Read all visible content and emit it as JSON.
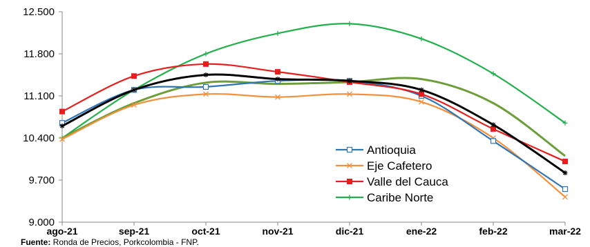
{
  "chart_data": {
    "type": "line",
    "title": "",
    "xlabel": "",
    "ylabel": "",
    "categories": [
      "ago-21",
      "sep-21",
      "oct-21",
      "nov-21",
      "dic-21",
      "ene-22",
      "feb-22",
      "mar-22"
    ],
    "y_ticks": [
      9000,
      9700,
      10400,
      11100,
      11800,
      12500
    ],
    "y_tick_labels": [
      "9.000",
      "9.700",
      "10.400",
      "11.100",
      "11.800",
      "12.500"
    ],
    "ylim": [
      9000,
      12500
    ],
    "grid": false,
    "legend_position": "bottom-right",
    "series": [
      {
        "name": "Antioquia",
        "color": "#2e75b6",
        "marker": "square-open",
        "values": [
          10650,
          11200,
          11250,
          11350,
          11350,
          11100,
          10350,
          9550
        ]
      },
      {
        "name": "Eje Cafetero",
        "color": "#f4903c",
        "marker": "x",
        "values": [
          10380,
          10950,
          11130,
          11080,
          11130,
          11000,
          10400,
          9420
        ]
      },
      {
        "name": "Valle del Cauca",
        "color": "#e61e1e",
        "marker": "square-filled",
        "values": [
          10840,
          11430,
          11630,
          11500,
          11330,
          11130,
          10550,
          10010
        ]
      },
      {
        "name": "Caribe Norte",
        "color": "#22b04c",
        "marker": "plus",
        "values": [
          10400,
          11200,
          11800,
          12140,
          12300,
          12050,
          11470,
          10650
        ]
      },
      {
        "name": "",
        "color": "#000000",
        "marker": "star",
        "values": [
          10600,
          11200,
          11450,
          11380,
          11350,
          11200,
          10620,
          9820
        ]
      },
      {
        "name": "",
        "color": "#6e9e3a",
        "marker": "none",
        "values": [
          10400,
          10980,
          11320,
          11300,
          11330,
          11380,
          10980,
          10100
        ]
      }
    ]
  },
  "source": {
    "label": "Fuente:",
    "text": " Ronda de Precios, Porkcolombia  - FNP."
  }
}
